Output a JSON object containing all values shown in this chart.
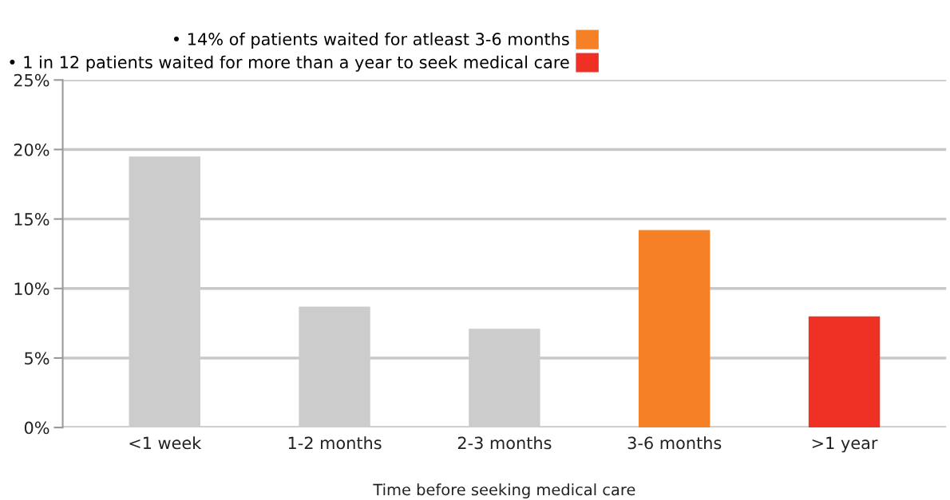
{
  "chart_data": {
    "type": "bar",
    "xlabel": "Time before seeking medical care",
    "categories": [
      "<1 week",
      "1-2 months",
      "2-3 months",
      "3-6 months",
      ">1 year"
    ],
    "series": [
      {
        "color": "#cccccc",
        "values": [
          19.5,
          8.7,
          7.1,
          null,
          null
        ]
      },
      {
        "name": "• 14% of patients waited for atleast 3-6 months",
        "color": "#f58025",
        "values": [
          null,
          null,
          null,
          14.2,
          null
        ]
      },
      {
        "name": "• 1 in 12 patients waited for more than a year to seek medical care",
        "color": "#ee3124",
        "values": [
          null,
          null,
          null,
          null,
          8.0
        ]
      }
    ],
    "ylim": [
      0,
      25
    ],
    "yticks": [
      {
        "value": 0,
        "label": "0%"
      },
      {
        "value": 5,
        "label": "5%"
      },
      {
        "value": 10,
        "label": "10%"
      },
      {
        "value": 15,
        "label": "15%"
      },
      {
        "value": 20,
        "label": "20%"
      },
      {
        "value": 25,
        "label": "25%"
      }
    ],
    "grid": "y",
    "legend": "top left"
  }
}
